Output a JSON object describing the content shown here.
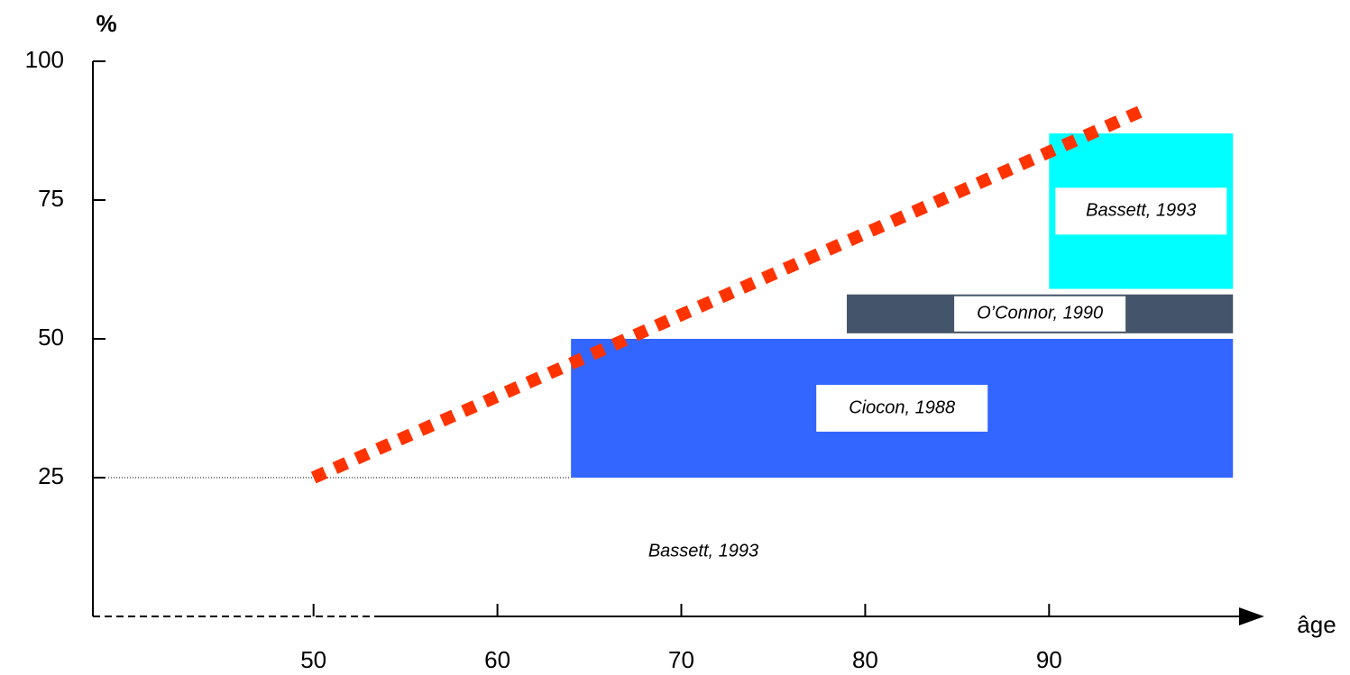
{
  "chart_data": {
    "type": "range",
    "y_label": "%",
    "x_label": "âge",
    "xlim": [
      38,
      102
    ],
    "ylim": [
      0,
      100
    ],
    "xticks": [
      50,
      60,
      70,
      80,
      90
    ],
    "yticks": [
      25,
      50,
      75,
      100
    ],
    "ranges": [
      {
        "name": "Ciocon, 1988",
        "color": "#3366ff",
        "x": [
          64,
          100
        ],
        "y": [
          25,
          50
        ]
      },
      {
        "name": "O’Connor, 1990",
        "color": "#44546a",
        "x": [
          79,
          100
        ],
        "y": [
          51,
          58
        ]
      },
      {
        "name": "Bassett, 1993",
        "color": "#00ffff",
        "x": [
          90,
          100
        ],
        "y": [
          59,
          87
        ]
      }
    ],
    "trend": {
      "name": "Bassett, 1993",
      "color": "#ff3300",
      "x": [
        50,
        95
      ],
      "y": [
        25,
        91
      ]
    }
  }
}
